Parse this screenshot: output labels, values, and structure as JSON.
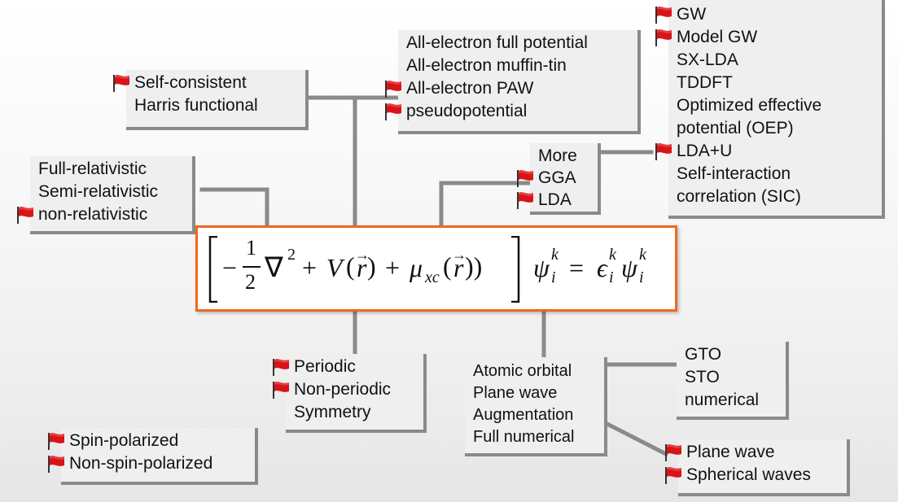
{
  "boxes": {
    "scf": {
      "items": [
        {
          "text": "Self-consistent",
          "flag": true
        },
        {
          "text": "Harris functional",
          "flag": false
        }
      ]
    },
    "potential": {
      "items": [
        {
          "text": "All-electron full potential",
          "flag": false
        },
        {
          "text": "All-electron muffin-tin",
          "flag": false
        },
        {
          "text": "All-electron PAW",
          "flag": true
        },
        {
          "text": "pseudopotential",
          "flag": true
        }
      ]
    },
    "beyond": {
      "items": [
        {
          "text": "GW",
          "flag": true
        },
        {
          "text": "Model GW",
          "flag": true
        },
        {
          "text": "SX-LDA",
          "flag": false
        },
        {
          "text": "TDDFT",
          "flag": false
        },
        {
          "text": "Optimized effective",
          "flag": false
        },
        {
          "text": "potential (OEP)",
          "flag": false
        },
        {
          "text": "LDA+U",
          "flag": true
        },
        {
          "text": "Self-interaction",
          "flag": false
        },
        {
          "text": "correlation (SIC)",
          "flag": false
        }
      ]
    },
    "xc": {
      "items": [
        {
          "text": "More",
          "flag": false
        },
        {
          "text": "GGA",
          "flag": true
        },
        {
          "text": "LDA",
          "flag": true
        }
      ]
    },
    "relativistic": {
      "items": [
        {
          "text": "Full-relativistic",
          "flag": false
        },
        {
          "text": "Semi-relativistic",
          "flag": false
        },
        {
          "text": "non-relativistic",
          "flag": true
        }
      ]
    },
    "periodicity": {
      "items": [
        {
          "text": "Periodic",
          "flag": true
        },
        {
          "text": "Non-periodic",
          "flag": true
        },
        {
          "text": "Symmetry",
          "flag": false
        }
      ]
    },
    "basis": {
      "items": [
        {
          "text": "Atomic orbital",
          "flag": false
        },
        {
          "text": "Plane wave",
          "flag": false
        },
        {
          "text": "Augmentation",
          "flag": false
        },
        {
          "text": "Full numerical",
          "flag": false
        }
      ]
    },
    "orbital": {
      "items": [
        {
          "text": "GTO",
          "flag": false
        },
        {
          "text": "STO",
          "flag": false
        },
        {
          "text": "numerical",
          "flag": false
        }
      ]
    },
    "augmentation": {
      "items": [
        {
          "text": "Plane wave",
          "flag": true
        },
        {
          "text": "Spherical waves",
          "flag": true
        }
      ]
    },
    "spin": {
      "items": [
        {
          "text": "Spin-polarized",
          "flag": true
        },
        {
          "text": "Non-spin-polarized",
          "flag": true
        }
      ]
    }
  },
  "equation": {
    "one": "1",
    "two": "2",
    "minus": "−",
    "nabla": "∇",
    "sq": "2",
    "plus1": "+",
    "V": "V",
    "lp1": "(",
    "r1": "r",
    "rp1": ")",
    "plus2": "+",
    "mu": "μ",
    "xc": "xc",
    "lp2": "(",
    "r2": "r",
    "rp2": "))",
    "psi1": "ψ",
    "sup1": "k",
    "sub1": "i",
    "eq": "=",
    "eps": "ϵ",
    "sup2": "k",
    "sub2": "i",
    "psi2": "ψ",
    "sup3": "k",
    "sub3": "i"
  },
  "colors": {
    "connector": "#8a8a8a",
    "box_bg": "#efefef",
    "equation_border": "#ec6a1e",
    "flag": "#d81418"
  }
}
